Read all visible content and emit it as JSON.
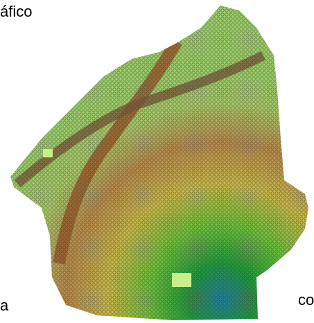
{
  "labels": {
    "top_left": "áfico",
    "bottom_left": "a",
    "bottom_right": "co"
  }
}
